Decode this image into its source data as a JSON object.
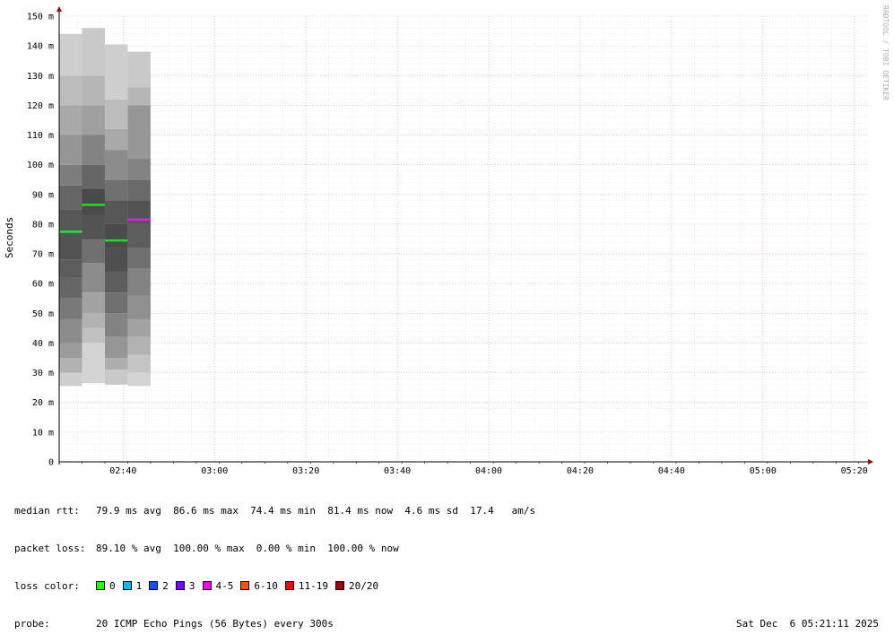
{
  "chart_data": {
    "type": "smokeping",
    "title": "",
    "ylabel": "Seconds",
    "ylim": [
      0,
      150
    ],
    "y_unit": "m",
    "y_ticks": [
      "0",
      "10 m",
      "20 m",
      "30 m",
      "40 m",
      "50 m",
      "60 m",
      "70 m",
      "80 m",
      "90 m",
      "100 m",
      "110 m",
      "120 m",
      "130 m",
      "140 m",
      "150 m"
    ],
    "x_ticks": [
      "02:40",
      "03:00",
      "03:20",
      "03:40",
      "04:00",
      "04:20",
      "04:40",
      "05:00",
      "05:20"
    ],
    "xlim_minutes": [
      146,
      323
    ],
    "grid": true,
    "credit": "RRDTOOL / TOBI OETIKER",
    "columns": [
      {
        "start_min": 146,
        "end_min": 151,
        "min": 25.5,
        "max": 144,
        "median": 77.5,
        "median_color": "#20e020",
        "bands": [
          [
            25.5,
            30,
            0.15
          ],
          [
            30,
            35,
            0.3
          ],
          [
            35,
            40,
            0.42
          ],
          [
            40,
            48,
            0.5
          ],
          [
            48,
            55,
            0.6
          ],
          [
            55,
            62,
            0.7
          ],
          [
            62,
            68,
            0.75
          ],
          [
            68,
            77,
            0.8
          ],
          [
            77,
            85,
            0.78
          ],
          [
            85,
            93,
            0.7
          ],
          [
            93,
            100,
            0.58
          ],
          [
            100,
            110,
            0.45
          ],
          [
            110,
            120,
            0.35
          ],
          [
            120,
            130,
            0.25
          ],
          [
            130,
            144,
            0.15
          ]
        ]
      },
      {
        "start_min": 151,
        "end_min": 156,
        "min": 26.5,
        "max": 146,
        "median": 86.5,
        "median_color": "#20e020",
        "bands": [
          [
            26.5,
            40,
            0.12
          ],
          [
            40,
            45,
            0.22
          ],
          [
            45,
            50,
            0.3
          ],
          [
            50,
            57,
            0.38
          ],
          [
            57,
            67,
            0.5
          ],
          [
            67,
            75,
            0.65
          ],
          [
            75,
            83,
            0.8
          ],
          [
            83,
            92,
            0.85
          ],
          [
            92,
            100,
            0.7
          ],
          [
            100,
            110,
            0.55
          ],
          [
            110,
            120,
            0.4
          ],
          [
            120,
            130,
            0.28
          ],
          [
            130,
            146,
            0.18
          ]
        ]
      },
      {
        "start_min": 156,
        "end_min": 161,
        "min": 26,
        "max": 140.5,
        "median": 74.5,
        "median_color": "#20e020",
        "bands": [
          [
            26,
            31,
            0.18
          ],
          [
            31,
            35,
            0.32
          ],
          [
            35,
            42,
            0.45
          ],
          [
            42,
            50,
            0.55
          ],
          [
            50,
            57,
            0.65
          ],
          [
            57,
            64,
            0.75
          ],
          [
            64,
            72,
            0.82
          ],
          [
            72,
            80,
            0.85
          ],
          [
            80,
            88,
            0.78
          ],
          [
            88,
            95,
            0.65
          ],
          [
            95,
            105,
            0.5
          ],
          [
            105,
            112,
            0.35
          ],
          [
            112,
            122,
            0.25
          ],
          [
            122,
            140.5,
            0.15
          ]
        ]
      },
      {
        "start_min": 161,
        "end_min": 166,
        "min": 25.5,
        "max": 138,
        "median": 81.5,
        "median_color": "#e020e0",
        "bands": [
          [
            25.5,
            30,
            0.12
          ],
          [
            30,
            36,
            0.2
          ],
          [
            36,
            42,
            0.3
          ],
          [
            42,
            48,
            0.38
          ],
          [
            48,
            56,
            0.48
          ],
          [
            56,
            65,
            0.55
          ],
          [
            65,
            72,
            0.65
          ],
          [
            72,
            80,
            0.75
          ],
          [
            80,
            88,
            0.8
          ],
          [
            88,
            95,
            0.68
          ],
          [
            95,
            102,
            0.55
          ],
          [
            102,
            120,
            0.45
          ],
          [
            120,
            126,
            0.28
          ],
          [
            126,
            138,
            0.18
          ]
        ]
      }
    ]
  },
  "legend": {
    "median_label": "median rtt:",
    "median_values": "79.9 ms avg  86.6 ms max  74.4 ms min  81.4 ms now  4.6 ms sd  17.4   am/s",
    "loss_label": "packet loss:",
    "loss_values": "89.10 % avg  100.00 % max  0.00 % min  100.00 % now",
    "color_label": "loss color:",
    "loss_colors": [
      {
        "label": "0",
        "color": "#26ff00"
      },
      {
        "label": "1",
        "color": "#00b8ff"
      },
      {
        "label": "2",
        "color": "#0059ff"
      },
      {
        "label": "3",
        "color": "#7e00ff"
      },
      {
        "label": "4-5",
        "color": "#ff00ff"
      },
      {
        "label": "6-10",
        "color": "#ff5500"
      },
      {
        "label": "11-19",
        "color": "#ff0000"
      },
      {
        "label": "20/20",
        "color": "#a10000"
      }
    ],
    "probe_label": "probe:",
    "probe_value": "20 ICMP Echo Pings (56 Bytes) every 300s",
    "timestamp": "Sat Dec  6 05:21:11 2025"
  }
}
